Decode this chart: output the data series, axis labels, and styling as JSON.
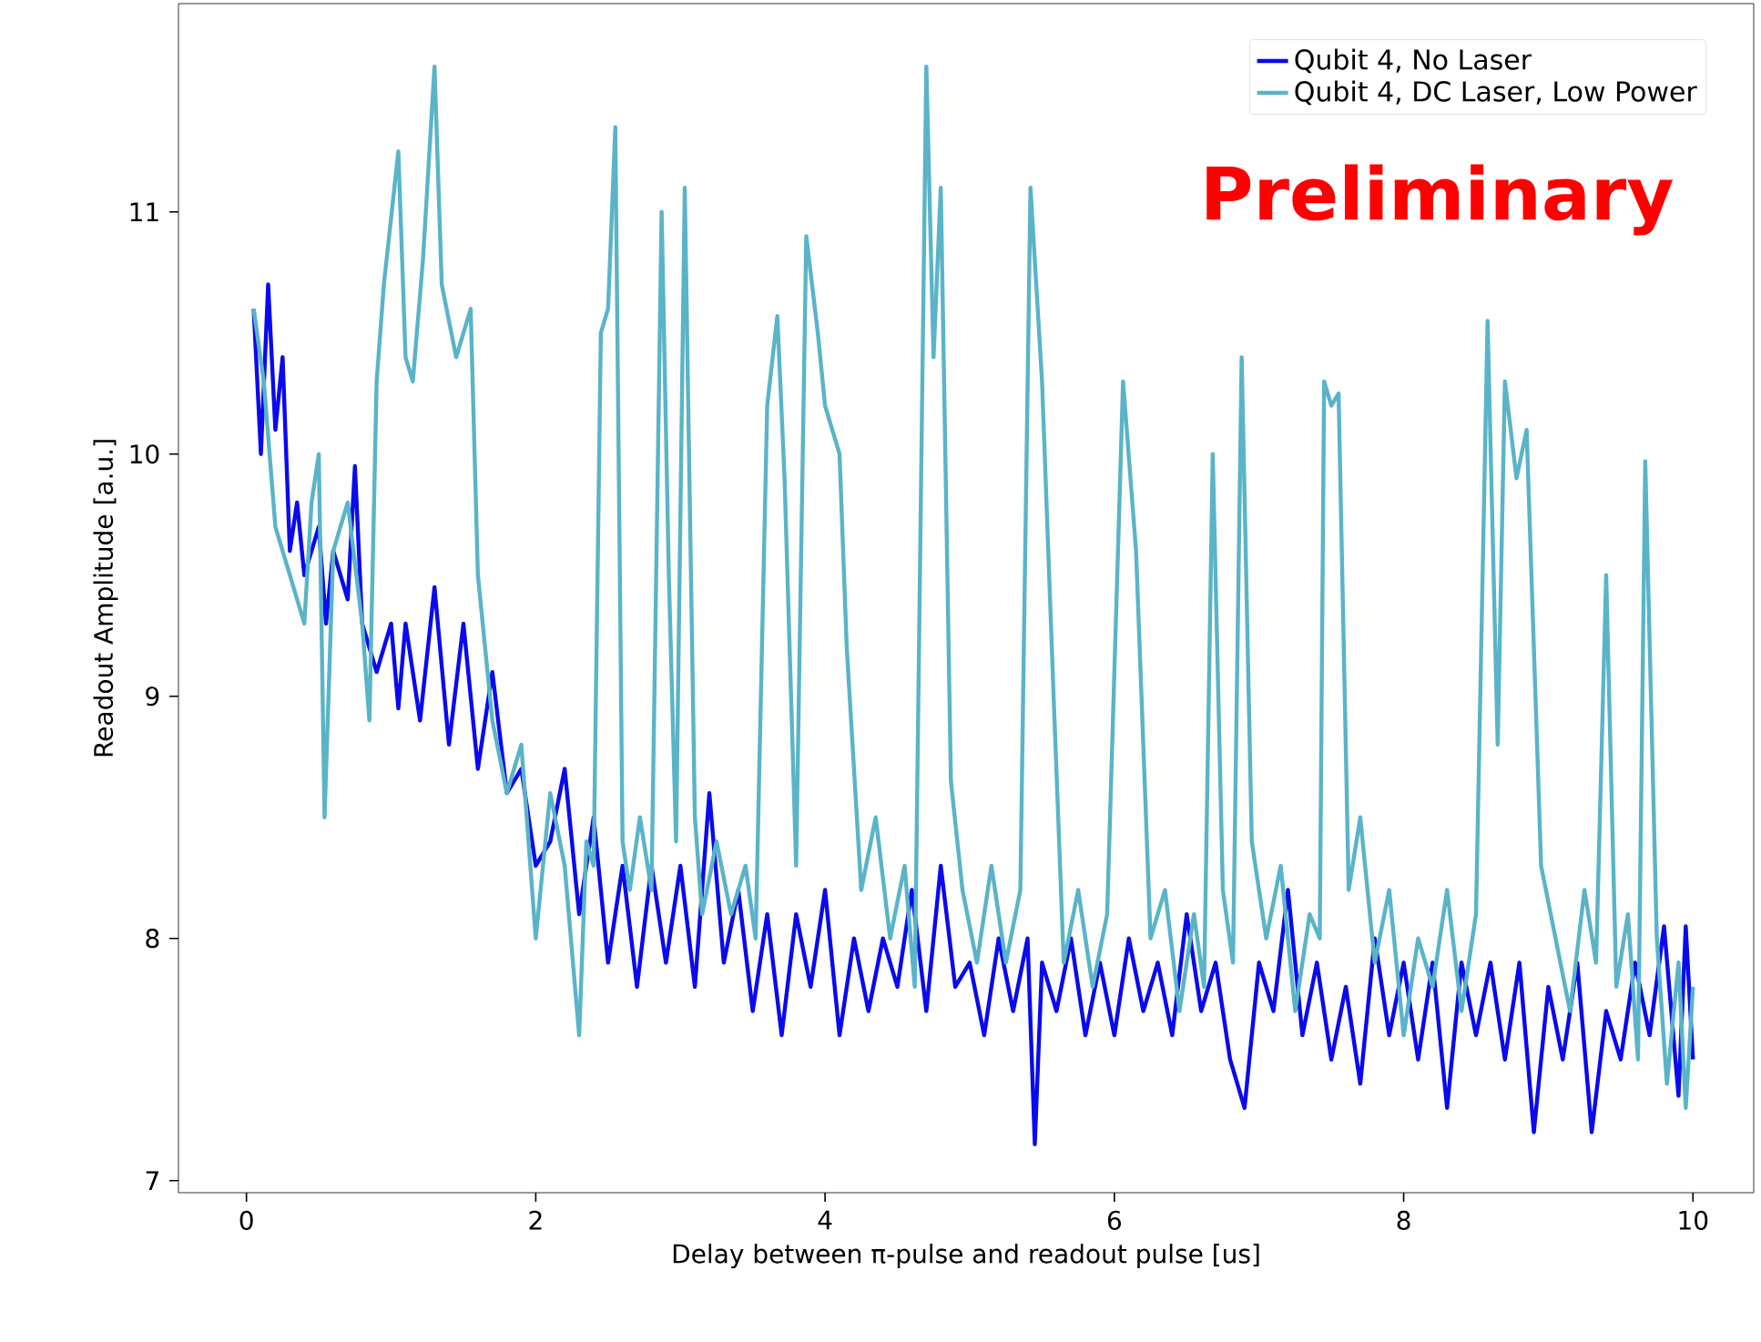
{
  "chart_data": {
    "type": "line",
    "xlabel": "Delay between π-pulse and readout pulse [us]",
    "ylabel": "Readout Amplitude [a.u.]",
    "annotations": [
      "Preliminary"
    ],
    "xlim": [
      -0.47,
      10.42
    ],
    "ylim": [
      6.95,
      11.86
    ],
    "xticks": [
      0,
      2,
      4,
      6,
      8,
      10
    ],
    "yticks": [
      7,
      8,
      9,
      10,
      11
    ],
    "grid": false,
    "legend": "top right",
    "marker": "none",
    "line_style": "solid",
    "series": [
      {
        "name": "Qubit 4, No Laser",
        "color": "#0a0aee",
        "x": [
          0.05,
          0.1,
          0.15,
          0.2,
          0.25,
          0.3,
          0.35,
          0.4,
          0.5,
          0.55,
          0.6,
          0.7,
          0.75,
          0.8,
          0.9,
          1.0,
          1.05,
          1.1,
          1.2,
          1.3,
          1.4,
          1.5,
          1.6,
          1.7,
          1.8,
          1.9,
          2.0,
          2.1,
          2.2,
          2.3,
          2.4,
          2.5,
          2.6,
          2.7,
          2.8,
          2.9,
          3.0,
          3.1,
          3.2,
          3.3,
          3.4,
          3.5,
          3.6,
          3.7,
          3.8,
          3.9,
          4.0,
          4.1,
          4.2,
          4.3,
          4.4,
          4.5,
          4.6,
          4.7,
          4.8,
          4.9,
          5.0,
          5.1,
          5.2,
          5.3,
          5.4,
          5.45,
          5.5,
          5.6,
          5.7,
          5.8,
          5.9,
          6.0,
          6.1,
          6.2,
          6.3,
          6.4,
          6.5,
          6.6,
          6.7,
          6.8,
          6.9,
          7.0,
          7.1,
          7.2,
          7.3,
          7.4,
          7.5,
          7.6,
          7.7,
          7.8,
          7.9,
          8.0,
          8.1,
          8.2,
          8.3,
          8.4,
          8.5,
          8.6,
          8.7,
          8.8,
          8.9,
          9.0,
          9.1,
          9.2,
          9.3,
          9.4,
          9.5,
          9.6,
          9.7,
          9.8,
          9.9,
          9.95,
          10.0
        ],
        "values": [
          10.6,
          10.0,
          10.7,
          10.1,
          10.4,
          9.6,
          9.8,
          9.5,
          9.7,
          9.3,
          9.6,
          9.4,
          9.95,
          9.3,
          9.1,
          9.3,
          8.95,
          9.3,
          8.9,
          9.45,
          8.8,
          9.3,
          8.7,
          9.1,
          8.6,
          8.7,
          8.3,
          8.4,
          8.7,
          8.1,
          8.5,
          7.9,
          8.3,
          7.8,
          8.3,
          7.9,
          8.3,
          7.8,
          8.6,
          7.9,
          8.2,
          7.7,
          8.1,
          7.6,
          8.1,
          7.8,
          8.2,
          7.6,
          8.0,
          7.7,
          8.0,
          7.8,
          8.2,
          7.7,
          8.3,
          7.8,
          7.9,
          7.6,
          8.0,
          7.7,
          8.0,
          7.15,
          7.9,
          7.7,
          8.0,
          7.6,
          7.9,
          7.6,
          8.0,
          7.7,
          7.9,
          7.6,
          8.1,
          7.7,
          7.9,
          7.5,
          7.3,
          7.9,
          7.7,
          8.2,
          7.6,
          7.9,
          7.5,
          7.8,
          7.4,
          8.0,
          7.6,
          7.9,
          7.5,
          7.9,
          7.3,
          7.9,
          7.6,
          7.9,
          7.5,
          7.9,
          7.2,
          7.8,
          7.5,
          7.9,
          7.2,
          7.7,
          7.5,
          7.9,
          7.6,
          8.05,
          7.35,
          8.05,
          7.5
        ]
      },
      {
        "name": "Qubit 4, DC Laser, Low Power",
        "color": "#5ab4c8",
        "x": [
          0.05,
          0.12,
          0.2,
          0.3,
          0.4,
          0.45,
          0.5,
          0.54,
          0.6,
          0.7,
          0.8,
          0.85,
          0.9,
          0.95,
          1.05,
          1.1,
          1.15,
          1.22,
          1.3,
          1.35,
          1.45,
          1.55,
          1.6,
          1.7,
          1.8,
          1.9,
          2.0,
          2.1,
          2.2,
          2.3,
          2.35,
          2.4,
          2.45,
          2.5,
          2.55,
          2.6,
          2.65,
          2.72,
          2.8,
          2.87,
          2.92,
          2.97,
          3.03,
          3.1,
          3.15,
          3.25,
          3.35,
          3.45,
          3.52,
          3.6,
          3.67,
          3.72,
          3.8,
          3.87,
          3.95,
          4.0,
          4.1,
          4.15,
          4.25,
          4.35,
          4.45,
          4.55,
          4.62,
          4.7,
          4.75,
          4.8,
          4.87,
          4.95,
          5.05,
          5.15,
          5.25,
          5.35,
          5.42,
          5.5,
          5.58,
          5.65,
          5.75,
          5.85,
          5.95,
          6.06,
          6.15,
          6.25,
          6.35,
          6.45,
          6.55,
          6.62,
          6.68,
          6.75,
          6.82,
          6.88,
          6.95,
          7.05,
          7.15,
          7.25,
          7.35,
          7.42,
          7.45,
          7.5,
          7.55,
          7.62,
          7.7,
          7.8,
          7.9,
          8.0,
          8.1,
          8.2,
          8.3,
          8.4,
          8.5,
          8.58,
          8.65,
          8.7,
          8.78,
          8.85,
          8.95,
          9.05,
          9.15,
          9.25,
          9.33,
          9.4,
          9.47,
          9.55,
          9.62,
          9.67,
          9.75,
          9.82,
          9.9,
          9.95,
          10.0
        ],
        "values": [
          10.6,
          10.3,
          9.7,
          9.5,
          9.3,
          9.8,
          10.0,
          8.5,
          9.6,
          9.8,
          9.3,
          8.9,
          10.3,
          10.7,
          11.25,
          10.4,
          10.3,
          10.8,
          11.6,
          10.7,
          10.4,
          10.6,
          9.5,
          8.9,
          8.6,
          8.8,
          8.0,
          8.6,
          8.3,
          7.6,
          8.4,
          8.3,
          10.5,
          10.6,
          11.35,
          8.4,
          8.2,
          8.5,
          8.2,
          11.0,
          9.5,
          8.4,
          11.1,
          8.5,
          8.1,
          8.4,
          8.1,
          8.3,
          8.0,
          10.2,
          10.57,
          9.9,
          8.3,
          10.9,
          10.5,
          10.2,
          10.0,
          9.2,
          8.2,
          8.5,
          8.0,
          8.3,
          7.8,
          11.6,
          10.4,
          11.1,
          8.65,
          8.2,
          7.9,
          8.3,
          7.9,
          8.2,
          11.1,
          10.3,
          9.0,
          7.9,
          8.2,
          7.8,
          8.1,
          10.3,
          9.6,
          8.0,
          8.2,
          7.7,
          8.1,
          7.8,
          10.0,
          8.2,
          7.9,
          10.4,
          8.4,
          8.0,
          8.3,
          7.7,
          8.1,
          8.0,
          10.3,
          10.2,
          10.25,
          8.2,
          8.5,
          7.9,
          8.2,
          7.6,
          8.0,
          7.8,
          8.2,
          7.7,
          8.1,
          10.55,
          8.8,
          10.3,
          9.9,
          10.1,
          8.3,
          8.0,
          7.7,
          8.2,
          7.9,
          9.5,
          7.8,
          8.1,
          7.5,
          9.97,
          8.0,
          7.4,
          7.9,
          7.3,
          7.8
        ]
      }
    ]
  }
}
